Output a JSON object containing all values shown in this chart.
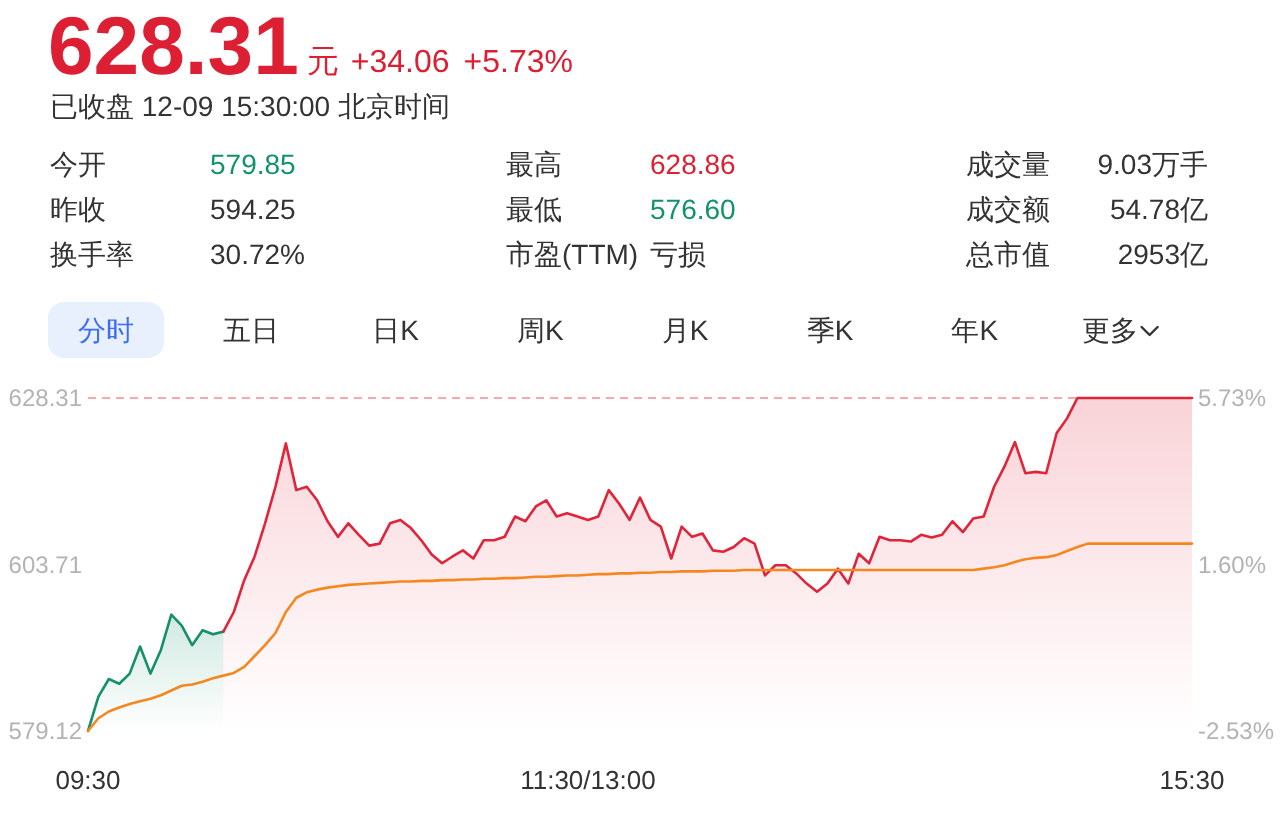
{
  "chart_data": [
    {
      "type": "other",
      "title": "628.31",
      "subtitle": "已收盘 12-09 15:30:00 北京时间",
      "annotations": [
        "元",
        "+34.06",
        "+5.73%",
        "今开",
        "579.85",
        "最高",
        "628.86",
        "成交量",
        "9.03万手",
        "昨收",
        "594.25",
        "最低",
        "576.60",
        "成交额",
        "54.78亿",
        "换手率",
        "30.72%",
        "市盈(TTM)",
        "亏损",
        "总市值",
        "2953亿",
        "分时",
        "五日",
        "日K",
        "周K",
        "月K",
        "季K",
        "年K",
        "更多"
      ]
    },
    {
      "type": "line",
      "categories": [
        "09:30",
        null,
        null,
        null,
        null,
        null,
        null,
        null,
        null,
        null,
        null,
        null,
        null,
        null,
        null,
        null,
        null,
        null,
        null,
        null,
        null,
        null,
        null,
        null,
        null,
        null,
        null,
        null,
        null,
        null,
        null,
        null,
        null,
        null,
        null,
        null,
        null,
        null,
        null,
        null,
        null,
        null,
        null,
        null,
        null,
        null,
        null,
        null,
        "11:30/13:00",
        null,
        null,
        null,
        null,
        null,
        null,
        null,
        null,
        null,
        null,
        null,
        null,
        null,
        null,
        null,
        null,
        null,
        null,
        null,
        null,
        null,
        null,
        null,
        null,
        null,
        null,
        null,
        null,
        null,
        null,
        null,
        null,
        null,
        null,
        null,
        null,
        null,
        null,
        null,
        null,
        null,
        null,
        null,
        null,
        null,
        null,
        null,
        null,
        null,
        null,
        null,
        null,
        null,
        null,
        null,
        null,
        null,
        "15:30"
      ],
      "ylim": [
        579.12,
        628.31
      ],
      "yticks": [
        579.12,
        603.71,
        628.31
      ],
      "y2lim": [
        -2.53,
        5.73
      ],
      "y2ticks": [
        {
          "value": -2.53,
          "label": "-2.53%"
        },
        {
          "value": 1.6,
          "label": "1.60%"
        },
        {
          "value": 5.73,
          "label": "5.73%"
        }
      ],
      "ref_lines": [
        {
          "axis": "y",
          "value": 628.31,
          "color": "#f5a9ad",
          "line_style": "dashed"
        }
      ],
      "series": [
        {
          "type": "area",
          "color": "#15906a",
          "values": [
            579.12,
            584.2,
            586.8,
            586.1,
            587.6,
            591.6,
            587.6,
            591.1,
            596.3,
            594.7,
            591.8,
            594.0,
            593.4,
            593.8,
            null,
            null,
            null,
            null,
            null,
            null,
            null,
            null,
            null,
            null,
            null,
            null,
            null,
            null,
            null,
            null,
            null,
            null,
            null,
            null,
            null,
            null,
            null,
            null,
            null,
            null,
            null,
            null,
            null,
            null,
            null,
            null,
            null,
            null,
            null,
            null,
            null,
            null,
            null,
            null,
            null,
            null,
            null,
            null,
            null,
            null,
            null,
            null,
            null,
            null,
            null,
            null,
            null,
            null,
            null,
            null,
            null,
            null,
            null,
            null,
            null,
            null,
            null,
            null,
            null,
            null,
            null,
            null,
            null,
            null,
            null,
            null,
            null,
            null,
            null,
            null,
            null,
            null,
            null,
            null,
            null,
            null,
            null,
            null,
            null,
            null,
            null,
            null,
            null,
            null,
            null,
            null,
            null
          ]
        },
        {
          "type": "area",
          "color": "#e0243a",
          "values": [
            null,
            null,
            null,
            null,
            null,
            null,
            null,
            null,
            null,
            null,
            null,
            null,
            null,
            593.8,
            596.7,
            601.4,
            604.9,
            609.8,
            615.2,
            621.6,
            614.7,
            615.2,
            613.2,
            610.1,
            607.8,
            609.8,
            608.1,
            606.5,
            606.8,
            609.8,
            610.3,
            609.1,
            607.3,
            605.2,
            603.9,
            604.9,
            605.8,
            604.6,
            607.3,
            607.3,
            607.8,
            610.8,
            610.1,
            612.3,
            613.2,
            610.8,
            611.3,
            610.8,
            610.3,
            610.8,
            614.7,
            612.7,
            610.3,
            613.6,
            610.3,
            609.3,
            604.6,
            609.3,
            607.8,
            608.3,
            605.8,
            605.6,
            606.3,
            607.6,
            606.8,
            602.1,
            603.6,
            603.6,
            602.4,
            600.9,
            599.7,
            600.9,
            603.1,
            600.9,
            605.3,
            603.9,
            607.8,
            607.3,
            607.3,
            607.1,
            608.1,
            607.7,
            608.1,
            610.1,
            608.5,
            610.5,
            610.8,
            615.2,
            618.2,
            621.8,
            617.2,
            617.4,
            617.2,
            623.1,
            625.3,
            628.31,
            628.31,
            628.31,
            628.31,
            628.31,
            628.31,
            628.31,
            628.31,
            628.31,
            628.31,
            628.31,
            628.31
          ]
        },
        {
          "type": "line",
          "color": "#f5871f",
          "values": [
            579.12,
            581.0,
            582.0,
            582.6,
            583.1,
            583.5,
            583.9,
            584.4,
            585.1,
            585.8,
            586.0,
            586.4,
            586.9,
            587.3,
            587.7,
            588.6,
            590.2,
            591.8,
            593.6,
            596.7,
            598.8,
            599.6,
            600.0,
            600.3,
            600.5,
            600.7,
            600.8,
            600.9,
            601.0,
            601.1,
            601.2,
            601.2,
            601.3,
            601.3,
            601.4,
            601.4,
            601.5,
            601.5,
            601.6,
            601.6,
            601.7,
            601.7,
            601.8,
            601.9,
            601.9,
            602.0,
            602.1,
            602.1,
            602.2,
            602.3,
            602.3,
            602.4,
            602.4,
            602.5,
            602.5,
            602.6,
            602.6,
            602.7,
            602.7,
            602.7,
            602.8,
            602.8,
            602.8,
            602.9,
            602.9,
            602.9,
            602.9,
            602.9,
            602.9,
            602.9,
            602.9,
            602.9,
            602.9,
            602.9,
            602.9,
            602.9,
            602.9,
            602.9,
            602.9,
            602.9,
            602.9,
            602.9,
            602.9,
            602.9,
            602.9,
            602.9,
            603.1,
            603.3,
            603.6,
            604.1,
            604.5,
            604.7,
            604.8,
            605.1,
            605.7,
            606.3,
            606.8,
            606.8,
            606.8,
            606.8,
            606.8,
            606.8,
            606.8,
            606.8,
            606.8,
            606.8,
            606.8
          ]
        }
      ]
    }
  ]
}
